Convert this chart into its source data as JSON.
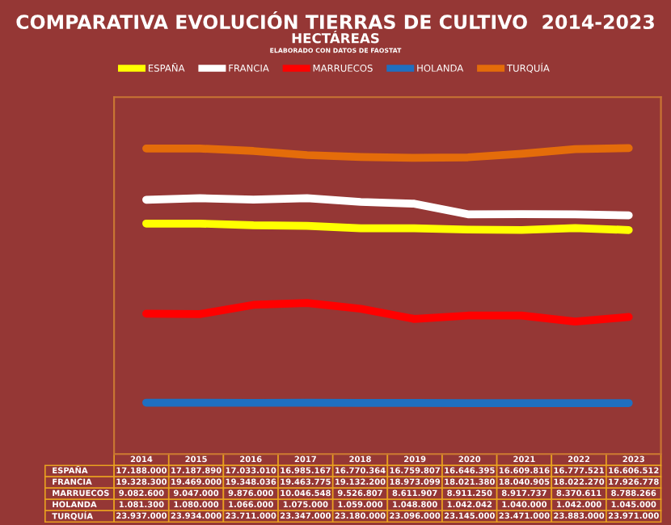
{
  "chart_data": {
    "type": "line",
    "title": "COMPARATIVA EVOLUCIÓN TIERRAS DE CULTIVO  2014-2023",
    "subtitle": "HECTÁREAS",
    "annotations": [
      "ELABORADO CON DATOS DE FAOSTAT"
    ],
    "categories": [
      "2014",
      "2015",
      "2016",
      "2017",
      "2018",
      "2019",
      "2020",
      "2021",
      "2022",
      "2023"
    ],
    "series": [
      {
        "name": "ESPAÑA",
        "color": "#ffff00",
        "values": [
          17188000,
          17187890,
          17033010,
          16985167,
          16770364,
          16759807,
          16646395,
          16609816,
          16777521,
          16606512
        ],
        "value_labels": [
          "17.188.000",
          "17.187.890",
          "17.033.010",
          "16.985.167",
          "16.770.364",
          "16.759.807",
          "16.646.395",
          "16.609.816",
          "16.777.521",
          "16.606.512"
        ]
      },
      {
        "name": "FRANCIA",
        "color": "#ffffff",
        "values": [
          19328300,
          19469000,
          19348036,
          19463775,
          19132200,
          18973099,
          18021380,
          18040905,
          18022270,
          17926778
        ],
        "value_labels": [
          "19.328.300",
          "19.469.000",
          "19.348.036",
          "19.463.775",
          "19.132.200",
          "18.973.099",
          "18.021.380",
          "18.040.905",
          "18.022.270",
          "17.926.778"
        ]
      },
      {
        "name": "MARRUECOS",
        "color": "#ff0000",
        "values": [
          9082600,
          9047000,
          9876000,
          10046548,
          9526807,
          8611907,
          8911250,
          8917737,
          8370611,
          8788266
        ],
        "value_labels": [
          "9.082.600",
          "9.047.000",
          "9.876.000",
          "10.046.548",
          "9.526.807",
          "8.611.907",
          "8.911.250",
          "8.917.737",
          "8.370.611",
          "8.788.266"
        ]
      },
      {
        "name": "HOLANDA",
        "color": "#1f6fc0",
        "values": [
          1081300,
          1080000,
          1066000,
          1075000,
          1059000,
          1048800,
          1042042,
          1040000,
          1042000,
          1045000
        ],
        "value_labels": [
          "1.081.300",
          "1.080.000",
          "1.066.000",
          "1.075.000",
          "1.059.000",
          "1.048.800",
          "1.042.042",
          "1.040.000",
          "1.042.000",
          "1.045.000"
        ]
      },
      {
        "name": "TURQUÍA",
        "color": "#e46c0a",
        "values": [
          23937000,
          23934000,
          23711000,
          23347000,
          23180000,
          23096000,
          23145000,
          23471000,
          23883000,
          23971000
        ],
        "value_labels": [
          "23.937.000",
          "23.934.000",
          "23.711.000",
          "23.347.000",
          "23.180.000",
          "23.096.000",
          "23.145.000",
          "23.471.000",
          "23.883.000",
          "23.971.000"
        ]
      }
    ],
    "legend": "top",
    "tick_labels": false,
    "marker": "none",
    "line_style": "solid"
  }
}
